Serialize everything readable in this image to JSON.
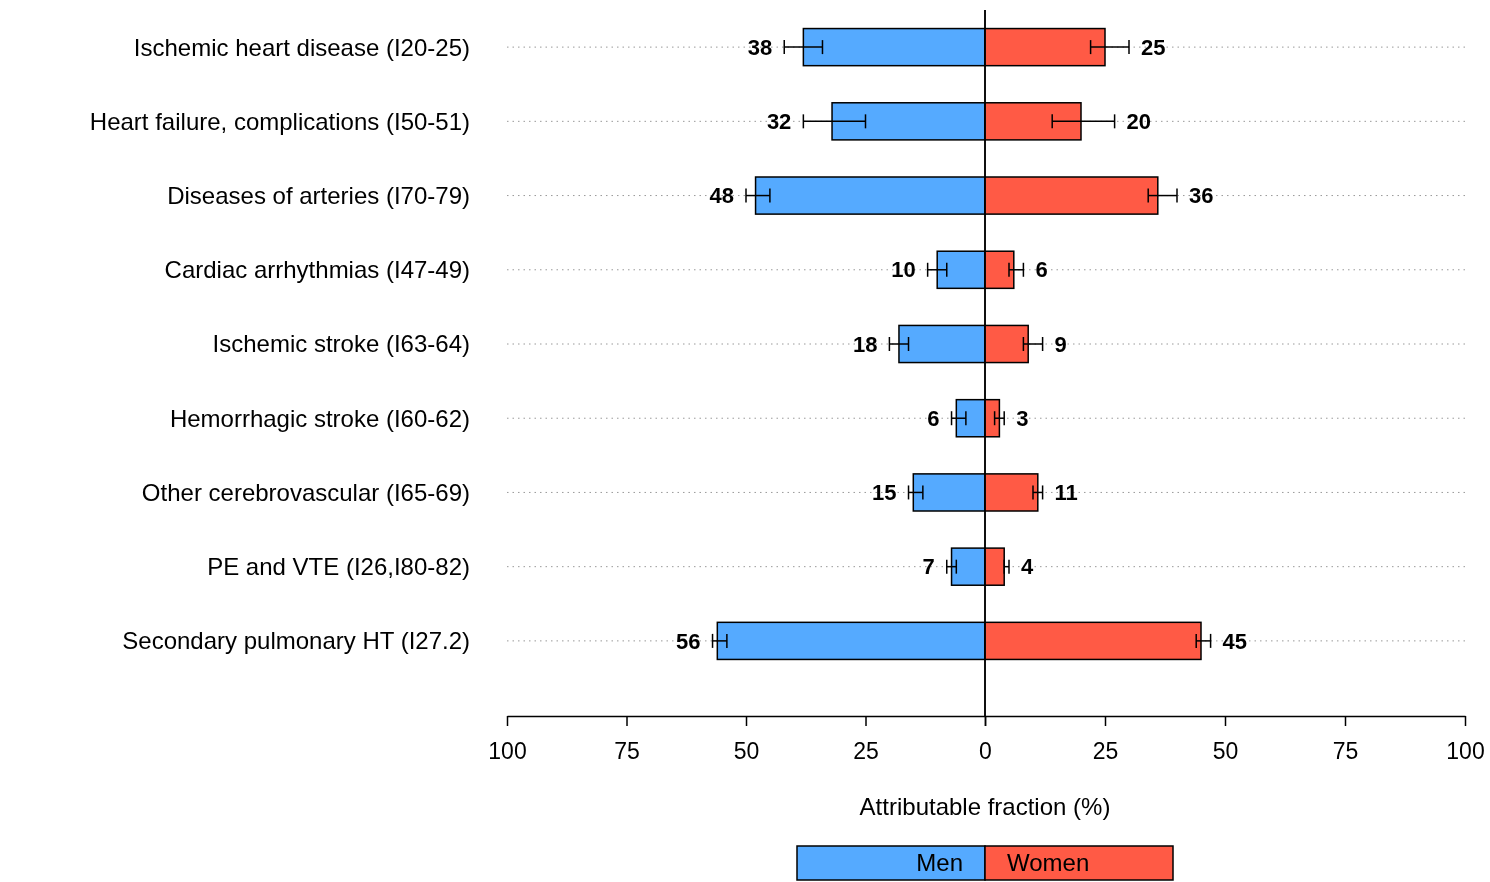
{
  "chart_data": [
    {
      "type": "bar",
      "orientation": "horizontal",
      "xlabel": "Attributable fraction (%)",
      "categories": [
        "Ischemic heart disease (I20-25)",
        "Heart failure, complications  (I50-51)",
        "Diseases of arteries (I70-79)",
        "Cardiac arrhythmias  (I47-49)",
        "Ischemic stroke  (I63-64)",
        "Hemorrhagic stroke  (I60-62)",
        "Other cerebrovascular (I65-69)",
        "PE and VTE (I26,I80-82)",
        "Secondary pulmonary HT (I27.2)"
      ],
      "series": [
        {
          "name": "Men",
          "color": "#55aaff",
          "values": [
            38,
            32,
            48,
            10,
            18,
            6,
            15,
            7,
            56
          ],
          "errors": [
            [
              34,
              42
            ],
            [
              25,
              38
            ],
            [
              45,
              50
            ],
            [
              8,
              12
            ],
            [
              16,
              20
            ],
            [
              4,
              7
            ],
            [
              13,
              16
            ],
            [
              6,
              8
            ],
            [
              54,
              57
            ]
          ]
        }
      ],
      "xlim": [
        100,
        0
      ],
      "xticks": [
        100,
        75,
        50,
        25,
        0
      ],
      "grid": "y",
      "legend": "bottom",
      "data_labels": true
    },
    {
      "type": "bar",
      "orientation": "horizontal",
      "categories": [
        null,
        null,
        null,
        null,
        null,
        null,
        null,
        null,
        null
      ],
      "series": [
        {
          "name": "Women",
          "color": "#ff5a45",
          "values": [
            25,
            20,
            36,
            6,
            9,
            3,
            11,
            4,
            45
          ],
          "errors": [
            [
              22,
              30
            ],
            [
              14,
              27
            ],
            [
              34,
              40
            ],
            [
              5,
              8
            ],
            [
              8,
              12
            ],
            [
              2,
              4
            ],
            [
              10,
              12
            ],
            [
              4,
              5
            ],
            [
              44,
              47
            ]
          ]
        }
      ],
      "xlim": [
        0,
        100
      ],
      "xticks": [
        {
          "value": 0,
          "label": null
        },
        25,
        50,
        75,
        100
      ],
      "grid": "y",
      "legend": "bottom",
      "data_labels": true,
      "tick_labels": "x"
    }
  ]
}
